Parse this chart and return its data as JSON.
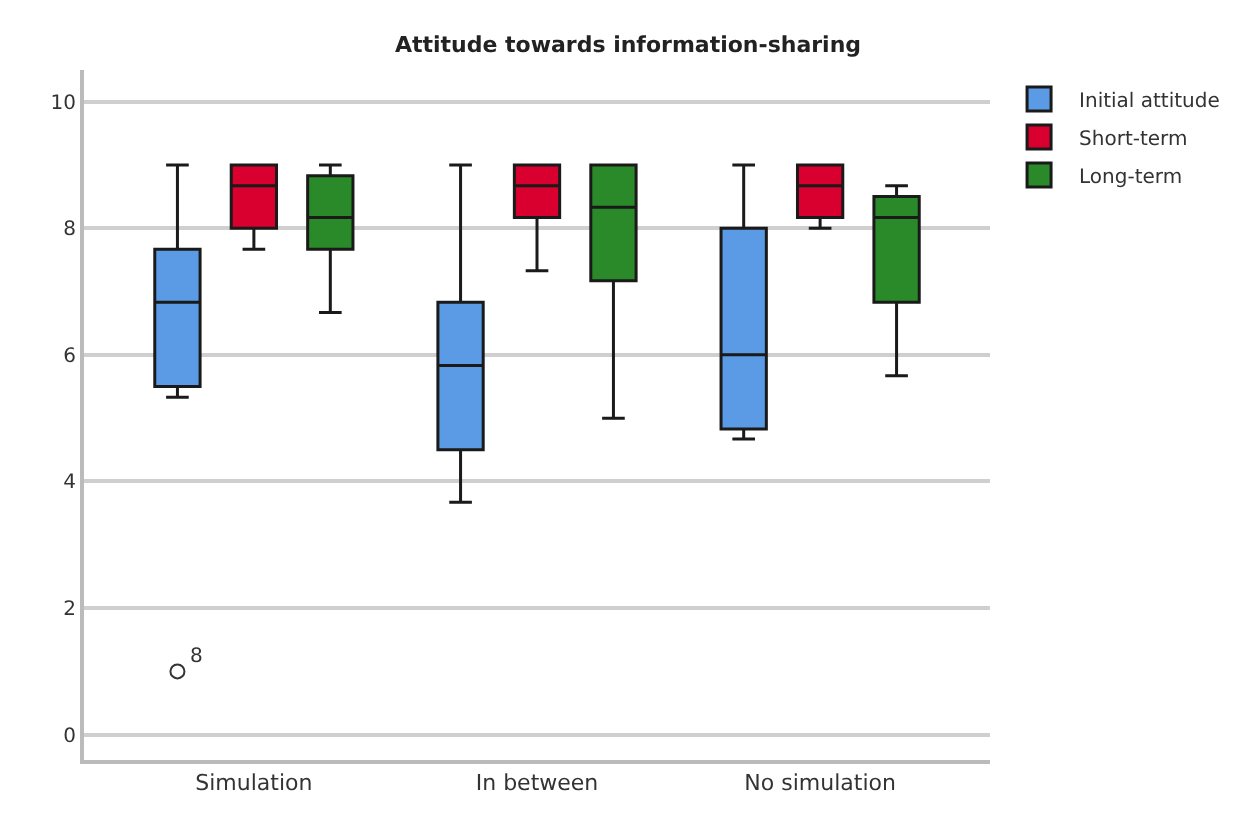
{
  "chart_data": {
    "type": "box",
    "title": "Attitude towards information-sharing",
    "categories": [
      "Simulation",
      "In between",
      "No simulation"
    ],
    "series": [
      {
        "name": "Initial attitude",
        "color": "#5b9be6",
        "boxes": [
          {
            "low": 5.33,
            "q1": 5.5,
            "median": 6.83,
            "q3": 7.67,
            "high": 9,
            "outliers": [
              1
            ]
          },
          {
            "low": 3.67,
            "q1": 4.5,
            "median": 5.83,
            "q3": 6.83,
            "high": 9
          },
          {
            "low": 4.67,
            "q1": 4.83,
            "median": 6,
            "q3": 8,
            "high": 9
          }
        ]
      },
      {
        "name": "Short-term",
        "color": "#d9002f",
        "boxes": [
          {
            "low": 7.67,
            "q1": 8,
            "median": 8.67,
            "q3": 9,
            "high": 9
          },
          {
            "low": 7.33,
            "q1": 8.17,
            "median": 8.67,
            "q3": 9,
            "high": 9
          },
          {
            "low": 8,
            "q1": 8.17,
            "median": 8.67,
            "q3": 9,
            "high": 9
          }
        ]
      },
      {
        "name": "Long-term",
        "color": "#2a8a2a",
        "boxes": [
          {
            "low": 6.67,
            "q1": 7.67,
            "median": 8.17,
            "q3": 8.83,
            "high": 9
          },
          {
            "low": 5,
            "q1": 7.17,
            "median": 8.33,
            "q3": 9,
            "high": 9
          },
          {
            "low": 5.67,
            "q1": 6.83,
            "median": 8.17,
            "q3": 8.5,
            "high": 8.67
          }
        ]
      }
    ],
    "annotations": [
      "8"
    ],
    "ylim": [
      -0.4,
      10.5
    ],
    "yticks": [
      0,
      2,
      4,
      6,
      8,
      10
    ],
    "grid": "y",
    "legend": "top right"
  }
}
